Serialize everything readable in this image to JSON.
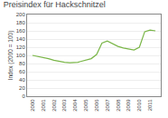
{
  "chart_data": {
    "type": "line",
    "title": "Preisindex für Hackschnitzel",
    "y_label": "Index (2000 = 100)",
    "x": [
      2000,
      2001,
      2001.5,
      2002,
      2002.5,
      2003,
      2003.5,
      2004,
      2004.25,
      2004.5,
      2005,
      2005.5,
      2006,
      2006.5,
      2007,
      2007.5,
      2008,
      2008.5,
      2009,
      2009.5,
      2010,
      2010.25,
      2010.5,
      2011,
      2011.5
    ],
    "values": [
      100,
      95,
      92,
      88,
      85,
      83,
      82,
      82,
      83,
      85,
      88,
      92,
      102,
      130,
      135,
      128,
      122,
      118,
      115,
      113,
      120,
      140,
      158,
      162,
      160
    ],
    "color": "#7ab648",
    "xlim": [
      1999.5,
      2012.0
    ],
    "xticks": [
      2000,
      2001,
      2002,
      2003,
      2004,
      2005,
      2006,
      2007,
      2008,
      2009,
      2010,
      2011
    ],
    "ylim": [
      0,
      200
    ],
    "yticks": [
      0,
      20,
      40,
      60,
      80,
      100,
      120,
      140,
      160,
      180,
      200
    ],
    "grid": "y"
  }
}
